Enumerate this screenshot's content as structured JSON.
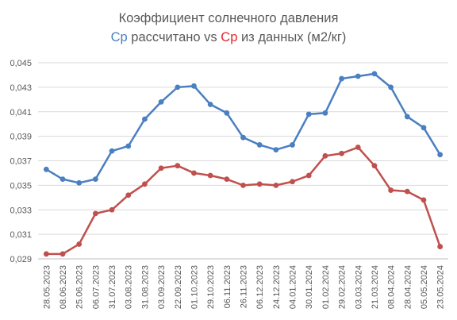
{
  "chart_data": {
    "type": "line",
    "title": {
      "line1": "Коэффициент солнечного давления",
      "line2_series_a": "Cp",
      "line2_middle": "рассчитано vs",
      "line2_series_b": "Cp",
      "line2_rest": "из данных (м2/кг)"
    },
    "xlabel": "",
    "ylabel": "",
    "ylim": [
      0.029,
      0.045
    ],
    "yticks": [
      "0,029",
      "0,031",
      "0,033",
      "0,035",
      "0,037",
      "0,039",
      "0,041",
      "0,043",
      "0,045"
    ],
    "grid": "horizontal",
    "categories": [
      "28.05.2023",
      "08.06.2023",
      "25.06.2023",
      "06.07.2023",
      "31.07.2023",
      "03.08.2023",
      "31.08.2023",
      "03.09.2023",
      "22.09.2023",
      "01.10.2023",
      "29.10.2023",
      "06.11.2023",
      "26.11.2023",
      "06.12.2023",
      "24.12.2023",
      "04.01.2024",
      "30.01.2024",
      "01.02.2024",
      "29.02.2024",
      "03.03.2024",
      "21.03.2024",
      "08.04.2024",
      "28.04.2024",
      "05.05.2024",
      "23.05.2024"
    ],
    "series": [
      {
        "color": "#4a7fc1",
        "values": [
          0.0363,
          0.0355,
          0.0352,
          0.0355,
          0.0378,
          0.0382,
          0.0404,
          0.0418,
          0.043,
          0.0431,
          0.0416,
          0.0409,
          0.0389,
          0.0383,
          0.0379,
          0.0383,
          0.0408,
          0.0409,
          0.0437,
          0.0439,
          0.0441,
          0.043,
          0.0406,
          0.0397,
          0.0375
        ]
      },
      {
        "color": "#c0504d",
        "values": [
          0.0294,
          0.0294,
          0.0302,
          0.0327,
          0.033,
          0.0342,
          0.0351,
          0.0364,
          0.0366,
          0.036,
          0.0358,
          0.0355,
          0.035,
          0.0351,
          0.035,
          0.0353,
          0.0358,
          0.0374,
          0.0376,
          0.0381,
          0.0366,
          0.0346,
          0.0345,
          0.0338,
          0.03
        ]
      }
    ]
  }
}
